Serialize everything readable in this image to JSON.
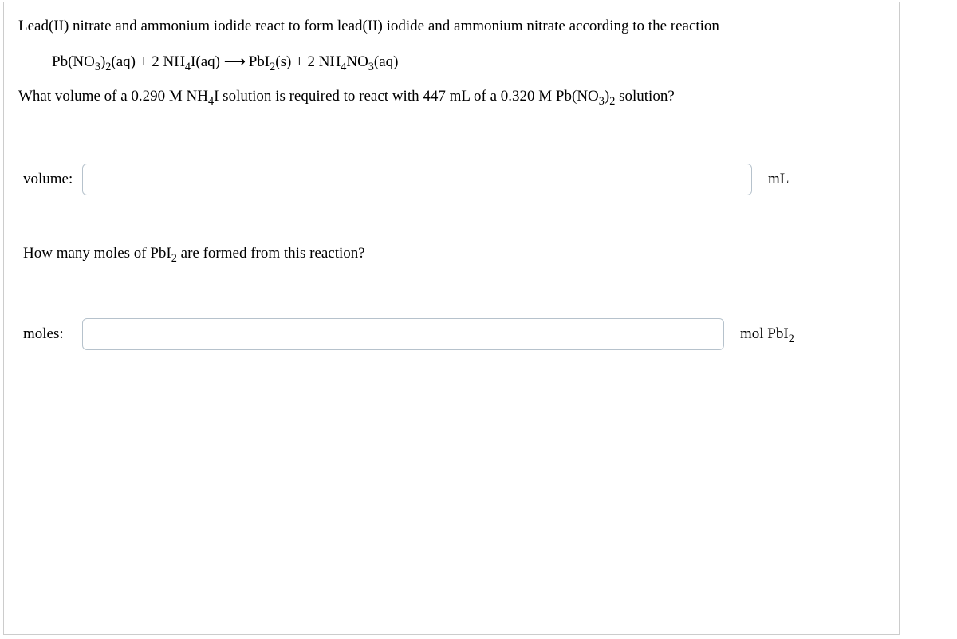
{
  "problem": {
    "intro": "Lead(II) nitrate and ammonium iodide react to form lead(II) iodide and ammonium nitrate according to the reaction",
    "equation_html": "Pb(NO<sub>3</sub>)<sub>2</sub>(aq) + 2 NH<sub>4</sub>I(aq) <span class='arrow'>&#x27F6;</span> PbI<sub>2</sub>(s) + 2 NH<sub>4</sub>NO<sub>3</sub>(aq)",
    "question1_html": "What volume of a 0.290 M NH<sub>4</sub>I solution is required to react with 447 mL of a 0.320 M Pb(NO<sub>3</sub>)<sub>2</sub> solution?",
    "question2_html": "How many moles of PbI<sub>2</sub> are formed from this reaction?"
  },
  "inputs": {
    "volume_label": "volume:",
    "volume_value": "",
    "volume_unit": "mL",
    "moles_label": "moles:",
    "moles_value": "",
    "moles_unit_html": "mol PbI<sub>2</sub>"
  },
  "style": {
    "container_width": 1124,
    "container_height": 794,
    "border_color": "#cccccc",
    "input_border_color": "#b6c2cc",
    "input_border_radius": 6,
    "font_family": "Times New Roman",
    "text_color": "#000000",
    "background_color": "#ffffff",
    "base_fontsize": 19
  }
}
